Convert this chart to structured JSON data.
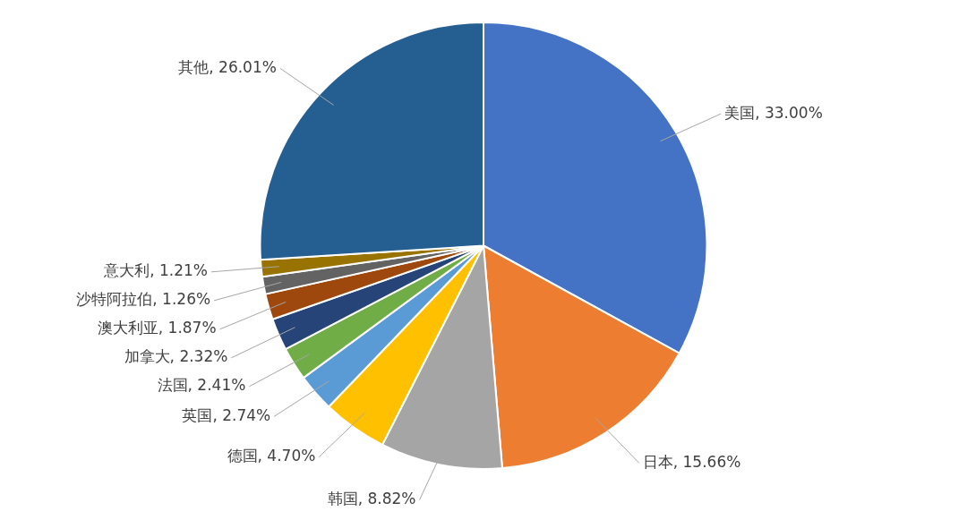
{
  "chart_data": {
    "type": "pie",
    "categories": [
      "美国",
      "日本",
      "韩国",
      "德国",
      "英国",
      "法国",
      "加拿大",
      "澳大利亚",
      "沙特阿拉伯",
      "意大利",
      "其他"
    ],
    "values": [
      33.0,
      15.66,
      8.82,
      4.7,
      2.74,
      2.41,
      2.32,
      1.87,
      1.26,
      1.21,
      26.01
    ],
    "value_labels": [
      "33.00%",
      "15.66%",
      "8.82%",
      "4.70%",
      "2.74%",
      "2.41%",
      "2.32%",
      "1.87%",
      "1.26%",
      "1.21%",
      "26.01%"
    ],
    "colors": [
      "#4472c4",
      "#ed7d31",
      "#a5a5a5",
      "#ffc000",
      "#5b9bd5",
      "#70ad47",
      "#264478",
      "#9e480e",
      "#636363",
      "#997300",
      "#255e91"
    ],
    "legend": false
  }
}
